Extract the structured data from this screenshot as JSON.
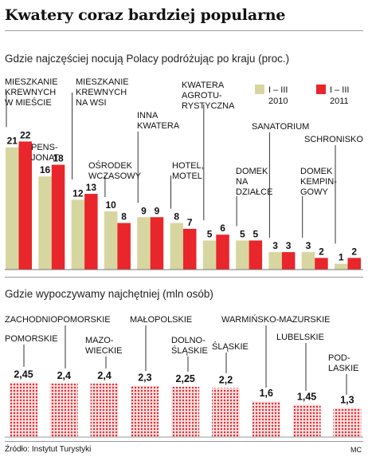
{
  "title": "Kwatery coraz bardziej popularne",
  "source": "Źródło: Instytut Turystyki",
  "credit": "MC",
  "chart_data": [
    {
      "type": "bar",
      "title": "Gdzie najczęściej nocują Polacy podróżując po kraju (proc.)",
      "legend": {
        "placement": "top-right"
      },
      "categories": [
        "MIESZKANIE KREWNYCH W MIEŚCIE",
        "PENSJONAT",
        "MIESZKANIE KREWNYCH NA WSI",
        "OŚRODEK WCZASOWY",
        "INNA KWATERA",
        "HOTEL, MOTEL",
        "KWATERA AGROTURYSTYCZNA",
        "DOMEK NA DZIAŁCE",
        "SANATORIUM",
        "DOMEK KEMPINGOWY",
        "SCHRONISKO"
      ],
      "category_lines": [
        [
          "MIESZKANIE",
          "KREWNYCH",
          "W MIEŚCIE"
        ],
        [
          "PENS-",
          "JONAT"
        ],
        [
          "MIESZKANIE",
          "KREWNYCH",
          "NA WSI"
        ],
        [
          "OŚRODEK",
          "WCZASOWY"
        ],
        [
          "INNA",
          "KWATERA"
        ],
        [
          "HOTEL,",
          "MOTEL"
        ],
        [
          "KWATERA",
          "AGROTU-",
          "RYSTYCZNA"
        ],
        [
          "DOMEK",
          "NA",
          "DZIAŁCE"
        ],
        [
          "SANATORIUM"
        ],
        [
          "DOMEK",
          "KEMPIN-",
          "GOWY"
        ],
        [
          "SCHRONISKO"
        ]
      ],
      "series": [
        {
          "name": "I – III 2010",
          "name_lines": [
            "I – III",
            "2010"
          ],
          "color": "#d8d6a0",
          "values": [
            21,
            16,
            12,
            10,
            9,
            8,
            5,
            5,
            3,
            3,
            1
          ]
        },
        {
          "name": "I – III 2011",
          "name_lines": [
            "I – III",
            "2011"
          ],
          "color": "#e8262b",
          "values": [
            22,
            18,
            13,
            8,
            9,
            7,
            6,
            5,
            3,
            2,
            2
          ]
        }
      ],
      "value_labels": [
        [
          "21",
          "16",
          "12",
          "10",
          "9",
          "8",
          "5",
          "5",
          "3",
          "3",
          "1"
        ],
        [
          "22",
          "18",
          "13",
          "8",
          "9",
          "7",
          "6",
          "5",
          "3",
          "2",
          "2"
        ]
      ],
      "ylim": [
        0,
        24
      ]
    },
    {
      "type": "bar",
      "title": "Gdzie wypoczywamy najchętniej (mln osób)",
      "categories": [
        "POMORSKIE",
        "ZACHODNIOPOMORSKIE",
        "MAZOWIECKIE",
        "MAŁOPOLSKIE",
        "DOLNOŚLĄSKIE",
        "ŚLĄSKIE",
        "WARMIŃSKO-MAZURSKIE",
        "LUBELSKIE",
        "PODLASKIE"
      ],
      "category_lines": [
        [
          "POMORSKIE"
        ],
        [
          "ZACHODNIOPOMORSKIE"
        ],
        [
          "MAZO-",
          "WIECKIE"
        ],
        [
          "MAŁOPOLSKIE"
        ],
        [
          "DOLNO-",
          "ŚLĄSKIE"
        ],
        [
          "ŚLĄSKIE"
        ],
        [
          "WARMIŃSKO-MAZURSKIE"
        ],
        [
          "LUBELSKIE"
        ],
        [
          "POD-",
          "LASKIE"
        ]
      ],
      "values": [
        2.45,
        2.4,
        2.4,
        2.3,
        2.25,
        2.2,
        1.6,
        1.45,
        1.3
      ],
      "value_labels": [
        "2,45",
        "2,4",
        "2,4",
        "2,3",
        "2,25",
        "2,2",
        "1,6",
        "1,45",
        "1,3"
      ],
      "color": "#e8262b",
      "ylim": [
        0,
        2.6
      ]
    }
  ]
}
